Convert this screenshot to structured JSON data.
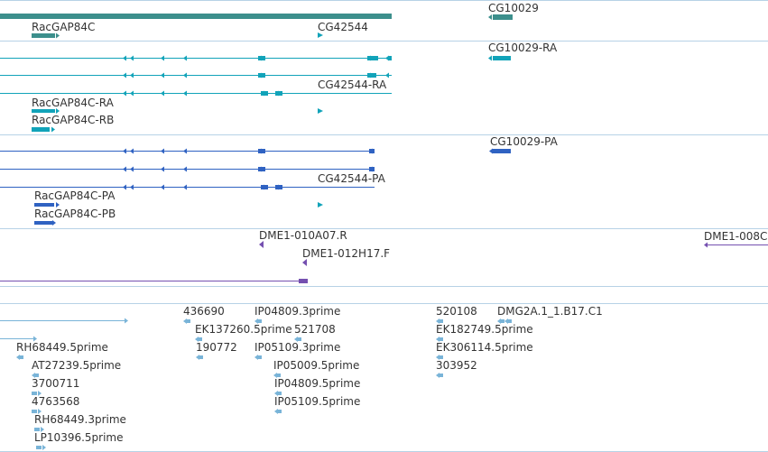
{
  "colors": {
    "gene": "#3c8f8c",
    "transcript": "#11a3b9",
    "protein": "#2f62c2",
    "clone": "#7550b0",
    "est": "#79b4d8",
    "separator": "#b7d2e6",
    "text": "#333333"
  },
  "tracks": {
    "gene": {
      "labels": [
        "RacGAP84C",
        "CG42544",
        "CG10029"
      ]
    },
    "transcript": {
      "labels": [
        "CG10029-RA",
        "CG42544-RA",
        "RacGAP84C-RA",
        "RacGAP84C-RB"
      ]
    },
    "protein": {
      "labels": [
        "CG10029-PA",
        "CG42544-PA",
        "RacGAP84C-PA",
        "RacGAP84C-PB"
      ]
    },
    "clone": {
      "labels": [
        "DME1-010A07.R",
        "DME1-012H17.F",
        "DME1-008C"
      ]
    },
    "est": {
      "labels": [
        "436690",
        "IP04809.3prime",
        "520108",
        "DMG2A.1_1.B17.C1",
        "EK137260.5prime",
        "521708",
        "EK182749.5prime",
        "RH68449.5prime",
        "190772",
        "IP05109.3prime",
        "EK306114.5prime",
        "AT27239.5prime",
        "IP05009.5prime",
        "303952",
        "3700711",
        "IP04809.5prime",
        "4763568",
        "IP05109.5prime",
        "RH68449.3prime",
        "LP10396.5prime"
      ]
    }
  }
}
